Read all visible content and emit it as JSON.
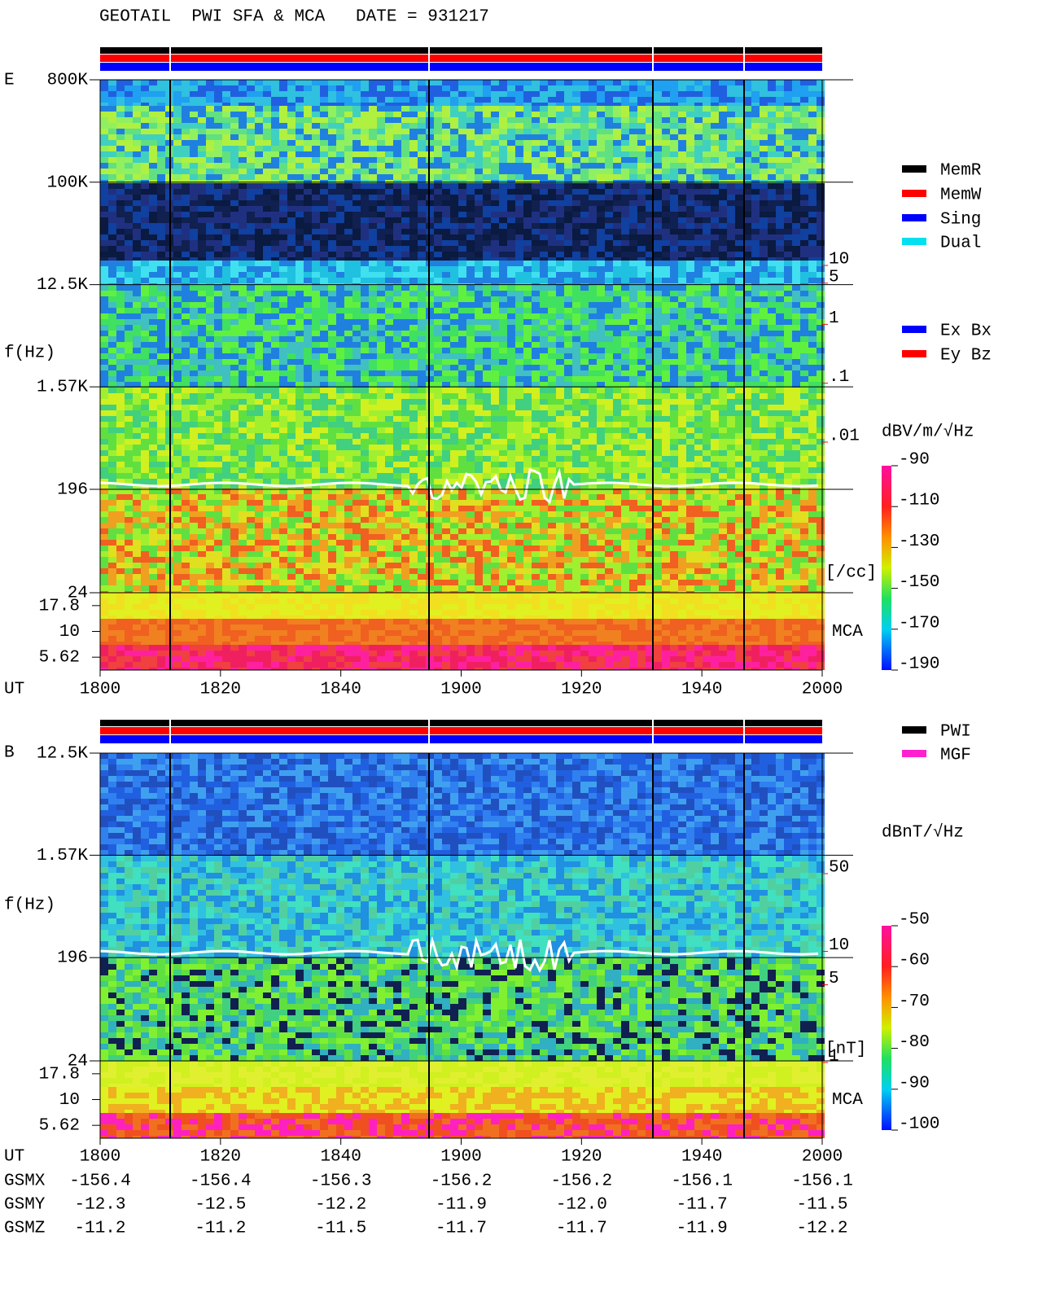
{
  "chart_data": [
    {
      "type": "spectrogram",
      "title": "GEOTAIL  PWI SFA & MCA   DATE = 931217",
      "panel_label": "E",
      "ylabel": "f(Hz)",
      "xlabel": "UT",
      "log_y": true,
      "ylim": [
        24,
        800000
      ],
      "yticks": [
        {
          "value": 800000,
          "label": "800K"
        },
        {
          "value": 100000,
          "label": "100K"
        },
        {
          "value": 12500,
          "label": "12.5K"
        },
        {
          "value": 1570,
          "label": "1.57K"
        },
        196,
        24
      ],
      "mca_label": "MCA",
      "mca_ticks": [
        17.8,
        10,
        5.62
      ],
      "xticks": [
        "1800",
        "1820",
        "1840",
        "1900",
        "1920",
        "1940",
        "2000"
      ],
      "density_ticks": [
        10,
        5,
        1,
        {
          "value": 0.1,
          "label": ".1"
        },
        {
          "value": 0.01,
          "label": ".01"
        }
      ],
      "density_unit": "[/cc]",
      "density_color": "#ff0000",
      "legend": [
        {
          "name": "MemR",
          "color": "#000000"
        },
        {
          "name": "MemW",
          "color": "#ff0000"
        },
        {
          "name": "Sing",
          "color": "#0000ff"
        },
        {
          "name": "Dual",
          "color": "#00e0f0"
        }
      ],
      "component_legend": [
        {
          "name": "Ex Bx",
          "color": "#0000ff"
        },
        {
          "name": "Ey Bz",
          "color": "#ff0000"
        }
      ],
      "colorbar_label": "dBV/m/√Hz",
      "clim": [
        -190,
        -90
      ],
      "cticks": [
        -90,
        -110,
        -130,
        -150,
        -170,
        -190
      ]
    },
    {
      "type": "spectrogram",
      "panel_label": "B",
      "ylabel": "f(Hz)",
      "xlabel": "UT",
      "log_y": true,
      "ylim": [
        24,
        12500
      ],
      "yticks": [
        {
          "value": 12500,
          "label": "12.5K"
        },
        {
          "value": 1570,
          "label": "1.57K"
        },
        196,
        24
      ],
      "mca_label": "MCA",
      "mca_ticks": [
        17.8,
        10,
        5.62
      ],
      "xticks": [
        "1800",
        "1820",
        "1840",
        "1900",
        "1920",
        "1940",
        "2000"
      ],
      "density_ticks": [
        50,
        10,
        5,
        1
      ],
      "density_unit": "[nT]",
      "density_color": "#ff0000",
      "legend": [
        {
          "name": "PWI",
          "color": "#000000"
        },
        {
          "name": "MGF",
          "color": "#ff20d0"
        }
      ],
      "colorbar_label": "dBnT/√Hz",
      "clim": [
        -100,
        -50
      ],
      "cticks": [
        -50,
        -60,
        -70,
        -80,
        -90,
        -100
      ]
    }
  ],
  "orbit": {
    "rows": [
      {
        "label": "GSMX",
        "values": [
          "-156.4",
          "-156.4",
          "-156.3",
          "-156.2",
          "-156.2",
          "-156.1",
          "-156.1"
        ]
      },
      {
        "label": "GSMY",
        "values": [
          "-12.3",
          "-12.5",
          "-12.2",
          "-11.9",
          "-12.0",
          "-11.7",
          "-11.5"
        ]
      },
      {
        "label": "GSMZ",
        "values": [
          "-11.2",
          "-11.2",
          "-11.5",
          "-11.7",
          "-11.7",
          "-11.9",
          "-12.2"
        ]
      }
    ]
  }
}
